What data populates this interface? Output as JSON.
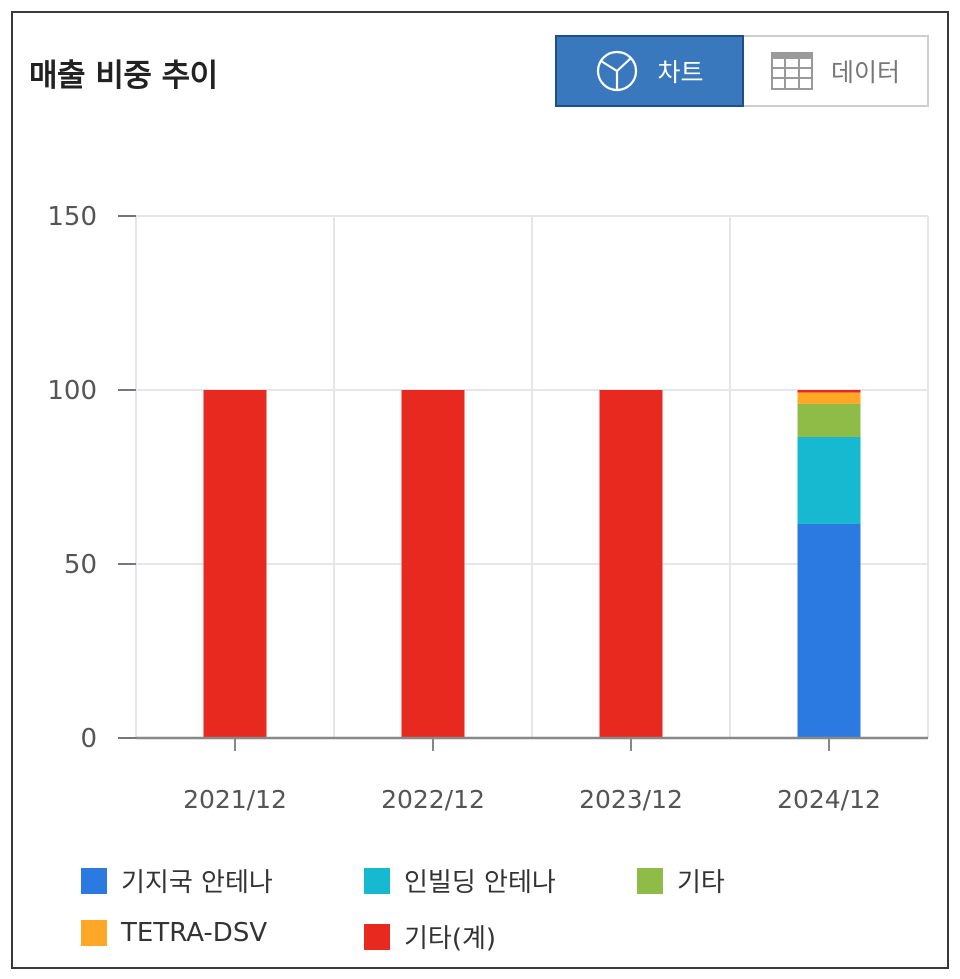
{
  "header": {
    "title": "매출 비중 추이",
    "chart_tab_label": "차트",
    "data_tab_label": "데이터"
  },
  "colors": {
    "기지국 안테나": "#2a7ae2",
    "인빌딩 안테나": "#17b9d1",
    "기타": "#8fbb47",
    "TETRA-DSV": "#ffa726",
    "기타(계)": "#e8291f"
  },
  "chart_data": {
    "type": "bar",
    "stacked": true,
    "title": "매출 비중 추이",
    "xlabel": "",
    "ylabel": "",
    "ylim": [
      0,
      150
    ],
    "yticks": [
      0,
      50,
      100,
      150
    ],
    "grid": true,
    "legend_position": "bottom",
    "categories": [
      "2021/12",
      "2022/12",
      "2023/12",
      "2024/12"
    ],
    "series": [
      {
        "name": "기지국 안테나",
        "values": [
          0,
          0,
          0,
          61.5
        ]
      },
      {
        "name": "인빌딩 안테나",
        "values": [
          0,
          0,
          0,
          25
        ]
      },
      {
        "name": "기타",
        "values": [
          0,
          0,
          0,
          9.5
        ]
      },
      {
        "name": "TETRA-DSV",
        "values": [
          0,
          0,
          0,
          3.3
        ]
      },
      {
        "name": "기타(계)",
        "values": [
          100,
          100,
          100,
          0.7
        ]
      }
    ]
  }
}
